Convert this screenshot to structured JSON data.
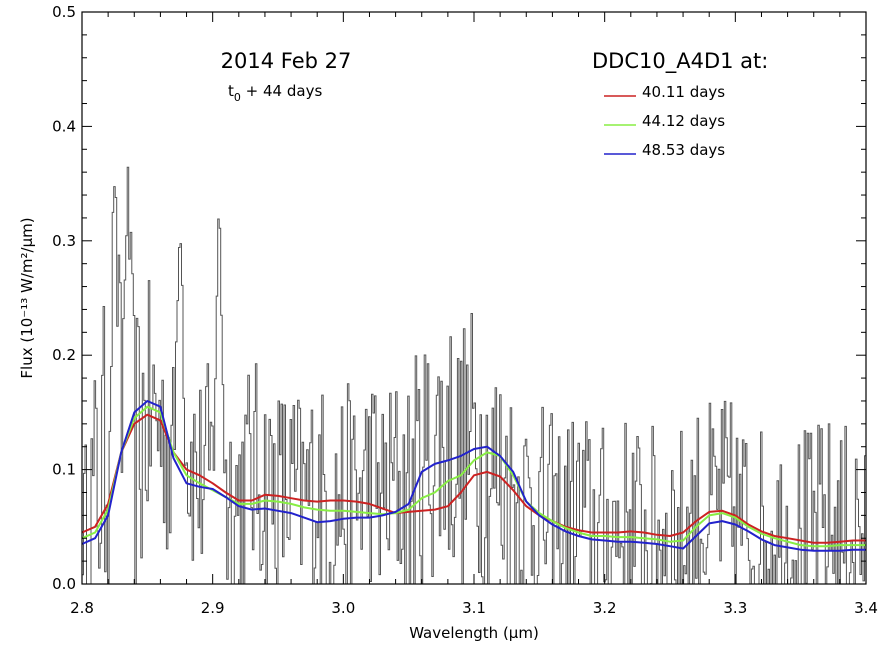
{
  "chart_data": {
    "type": "line",
    "title": "2014 Feb 27",
    "subtitle_main": "t",
    "subtitle_sub": "0",
    "subtitle_rest": " + 44 days",
    "xlabel": "Wavelength (μm)",
    "ylabel": "Flux (10⁻¹³ W/m²/μm)",
    "xlim": [
      2.8,
      3.4
    ],
    "ylim": [
      0.0,
      0.5
    ],
    "xticks": [
      "2.8",
      "2.9",
      "3.0",
      "3.1",
      "3.2",
      "3.3",
      "3.4"
    ],
    "yticks": [
      "0.0",
      "0.1",
      "0.2",
      "0.3",
      "0.4",
      "0.5"
    ],
    "grid": false,
    "legend": {
      "title": "DDC10_A4D1 at:",
      "position": "top-right",
      "entries": [
        "40.11 days",
        "44.12 days",
        "48.53 days"
      ]
    },
    "observed": {
      "color": "#555555",
      "style": "histogram",
      "x": [
        2.8,
        2.81,
        2.82,
        2.825,
        2.83,
        2.835,
        2.84,
        2.85,
        2.86,
        2.87,
        2.875,
        2.88,
        2.89,
        2.9,
        2.905,
        2.91,
        2.92,
        2.93,
        2.94,
        2.95,
        2.96,
        2.97,
        2.98,
        2.99,
        3.0,
        3.01,
        3.02,
        3.03,
        3.04,
        3.05,
        3.06,
        3.07,
        3.08,
        3.09,
        3.1,
        3.11,
        3.12,
        3.13,
        3.14,
        3.15,
        3.16,
        3.17,
        3.18,
        3.19,
        3.2,
        3.21,
        3.22,
        3.23,
        3.24,
        3.25,
        3.26,
        3.27,
        3.28,
        3.29,
        3.3,
        3.31,
        3.32,
        3.33,
        3.34,
        3.35,
        3.36,
        3.37,
        3.38,
        3.39,
        3.4
      ],
      "y": [
        0.05,
        0.08,
        0.12,
        0.36,
        0.12,
        0.37,
        0.1,
        0.15,
        0.14,
        0.1,
        0.33,
        0.12,
        0.09,
        0.1,
        0.34,
        0.08,
        0.07,
        0.1,
        0.09,
        0.08,
        0.08,
        0.07,
        0.09,
        0.06,
        0.08,
        0.07,
        0.1,
        0.07,
        0.09,
        0.07,
        0.1,
        0.12,
        0.13,
        0.11,
        0.13,
        0.1,
        0.09,
        0.08,
        0.07,
        0.06,
        0.05,
        0.05,
        0.06,
        0.05,
        0.04,
        0.05,
        0.05,
        0.04,
        0.04,
        0.05,
        0.04,
        0.06,
        0.06,
        0.07,
        0.06,
        0.05,
        0.04,
        0.04,
        0.04,
        0.04,
        0.04,
        0.05,
        0.04,
        0.05,
        0.04
      ],
      "spread": [
        0.05,
        0.12,
        0.15,
        0.0,
        0.15,
        0.0,
        0.15,
        0.12,
        0.1,
        0.1,
        0.0,
        0.1,
        0.1,
        0.1,
        0.0,
        0.1,
        0.12,
        0.1,
        0.1,
        0.1,
        0.1,
        0.1,
        0.1,
        0.1,
        0.1,
        0.1,
        0.1,
        0.1,
        0.1,
        0.12,
        0.12,
        0.12,
        0.12,
        0.12,
        0.12,
        0.12,
        0.12,
        0.1,
        0.1,
        0.1,
        0.1,
        0.1,
        0.1,
        0.1,
        0.1,
        0.1,
        0.1,
        0.1,
        0.1,
        0.1,
        0.1,
        0.1,
        0.1,
        0.1,
        0.1,
        0.1,
        0.1,
        0.1,
        0.1,
        0.1,
        0.1,
        0.1,
        0.1,
        0.1,
        0.1
      ]
    },
    "series": [
      {
        "name": "40.11 days",
        "color": "#cc2222",
        "x": [
          2.8,
          2.81,
          2.82,
          2.83,
          2.84,
          2.85,
          2.86,
          2.87,
          2.88,
          2.89,
          2.9,
          2.91,
          2.92,
          2.93,
          2.94,
          2.95,
          2.96,
          2.97,
          2.98,
          2.99,
          3.0,
          3.01,
          3.02,
          3.03,
          3.04,
          3.05,
          3.06,
          3.07,
          3.08,
          3.09,
          3.1,
          3.11,
          3.12,
          3.13,
          3.14,
          3.15,
          3.16,
          3.17,
          3.18,
          3.19,
          3.2,
          3.21,
          3.22,
          3.23,
          3.24,
          3.25,
          3.26,
          3.27,
          3.28,
          3.29,
          3.3,
          3.31,
          3.32,
          3.33,
          3.34,
          3.35,
          3.36,
          3.37,
          3.38,
          3.39,
          3.4
        ],
        "y": [
          0.045,
          0.05,
          0.07,
          0.115,
          0.14,
          0.148,
          0.143,
          0.115,
          0.1,
          0.095,
          0.088,
          0.08,
          0.073,
          0.073,
          0.078,
          0.077,
          0.075,
          0.073,
          0.072,
          0.073,
          0.073,
          0.072,
          0.07,
          0.066,
          0.062,
          0.063,
          0.064,
          0.065,
          0.068,
          0.08,
          0.095,
          0.098,
          0.094,
          0.082,
          0.068,
          0.06,
          0.055,
          0.05,
          0.047,
          0.045,
          0.045,
          0.045,
          0.046,
          0.045,
          0.043,
          0.042,
          0.045,
          0.055,
          0.063,
          0.064,
          0.06,
          0.052,
          0.046,
          0.042,
          0.04,
          0.038,
          0.036,
          0.036,
          0.037,
          0.038,
          0.038
        ]
      },
      {
        "name": "44.12 days",
        "color": "#88ee44",
        "x": [
          2.8,
          2.81,
          2.82,
          2.83,
          2.84,
          2.85,
          2.86,
          2.87,
          2.88,
          2.89,
          2.9,
          2.91,
          2.92,
          2.93,
          2.94,
          2.95,
          2.96,
          2.97,
          2.98,
          2.99,
          3.0,
          3.01,
          3.02,
          3.03,
          3.04,
          3.05,
          3.06,
          3.07,
          3.08,
          3.09,
          3.1,
          3.11,
          3.12,
          3.13,
          3.14,
          3.15,
          3.16,
          3.17,
          3.18,
          3.19,
          3.2,
          3.21,
          3.22,
          3.23,
          3.24,
          3.25,
          3.26,
          3.27,
          3.28,
          3.29,
          3.3,
          3.31,
          3.32,
          3.33,
          3.34,
          3.35,
          3.36,
          3.37,
          3.38,
          3.39,
          3.4
        ],
        "y": [
          0.04,
          0.045,
          0.065,
          0.115,
          0.145,
          0.155,
          0.15,
          0.115,
          0.095,
          0.088,
          0.082,
          0.076,
          0.07,
          0.07,
          0.073,
          0.072,
          0.07,
          0.067,
          0.065,
          0.064,
          0.064,
          0.063,
          0.062,
          0.061,
          0.062,
          0.065,
          0.075,
          0.08,
          0.09,
          0.095,
          0.108,
          0.115,
          0.112,
          0.095,
          0.072,
          0.062,
          0.055,
          0.049,
          0.045,
          0.042,
          0.042,
          0.041,
          0.041,
          0.04,
          0.039,
          0.037,
          0.038,
          0.05,
          0.06,
          0.062,
          0.058,
          0.05,
          0.044,
          0.04,
          0.037,
          0.034,
          0.033,
          0.033,
          0.034,
          0.034,
          0.034
        ]
      },
      {
        "name": "48.53 days",
        "color": "#2222cc",
        "x": [
          2.8,
          2.81,
          2.82,
          2.83,
          2.84,
          2.85,
          2.86,
          2.87,
          2.88,
          2.89,
          2.9,
          2.91,
          2.92,
          2.93,
          2.94,
          2.95,
          2.96,
          2.97,
          2.98,
          2.99,
          3.0,
          3.01,
          3.02,
          3.03,
          3.04,
          3.05,
          3.06,
          3.07,
          3.08,
          3.09,
          3.1,
          3.11,
          3.12,
          3.13,
          3.14,
          3.15,
          3.16,
          3.17,
          3.18,
          3.19,
          3.2,
          3.21,
          3.22,
          3.23,
          3.24,
          3.25,
          3.26,
          3.27,
          3.28,
          3.29,
          3.3,
          3.31,
          3.32,
          3.33,
          3.34,
          3.35,
          3.36,
          3.37,
          3.38,
          3.39,
          3.4
        ],
        "y": [
          0.035,
          0.04,
          0.06,
          0.115,
          0.15,
          0.16,
          0.155,
          0.11,
          0.088,
          0.085,
          0.083,
          0.076,
          0.068,
          0.065,
          0.066,
          0.064,
          0.062,
          0.058,
          0.054,
          0.055,
          0.057,
          0.058,
          0.058,
          0.06,
          0.063,
          0.07,
          0.098,
          0.105,
          0.108,
          0.112,
          0.118,
          0.12,
          0.112,
          0.098,
          0.072,
          0.06,
          0.052,
          0.046,
          0.042,
          0.039,
          0.038,
          0.037,
          0.037,
          0.036,
          0.035,
          0.033,
          0.031,
          0.042,
          0.053,
          0.055,
          0.052,
          0.046,
          0.039,
          0.034,
          0.032,
          0.03,
          0.029,
          0.029,
          0.029,
          0.03,
          0.03
        ]
      }
    ]
  }
}
